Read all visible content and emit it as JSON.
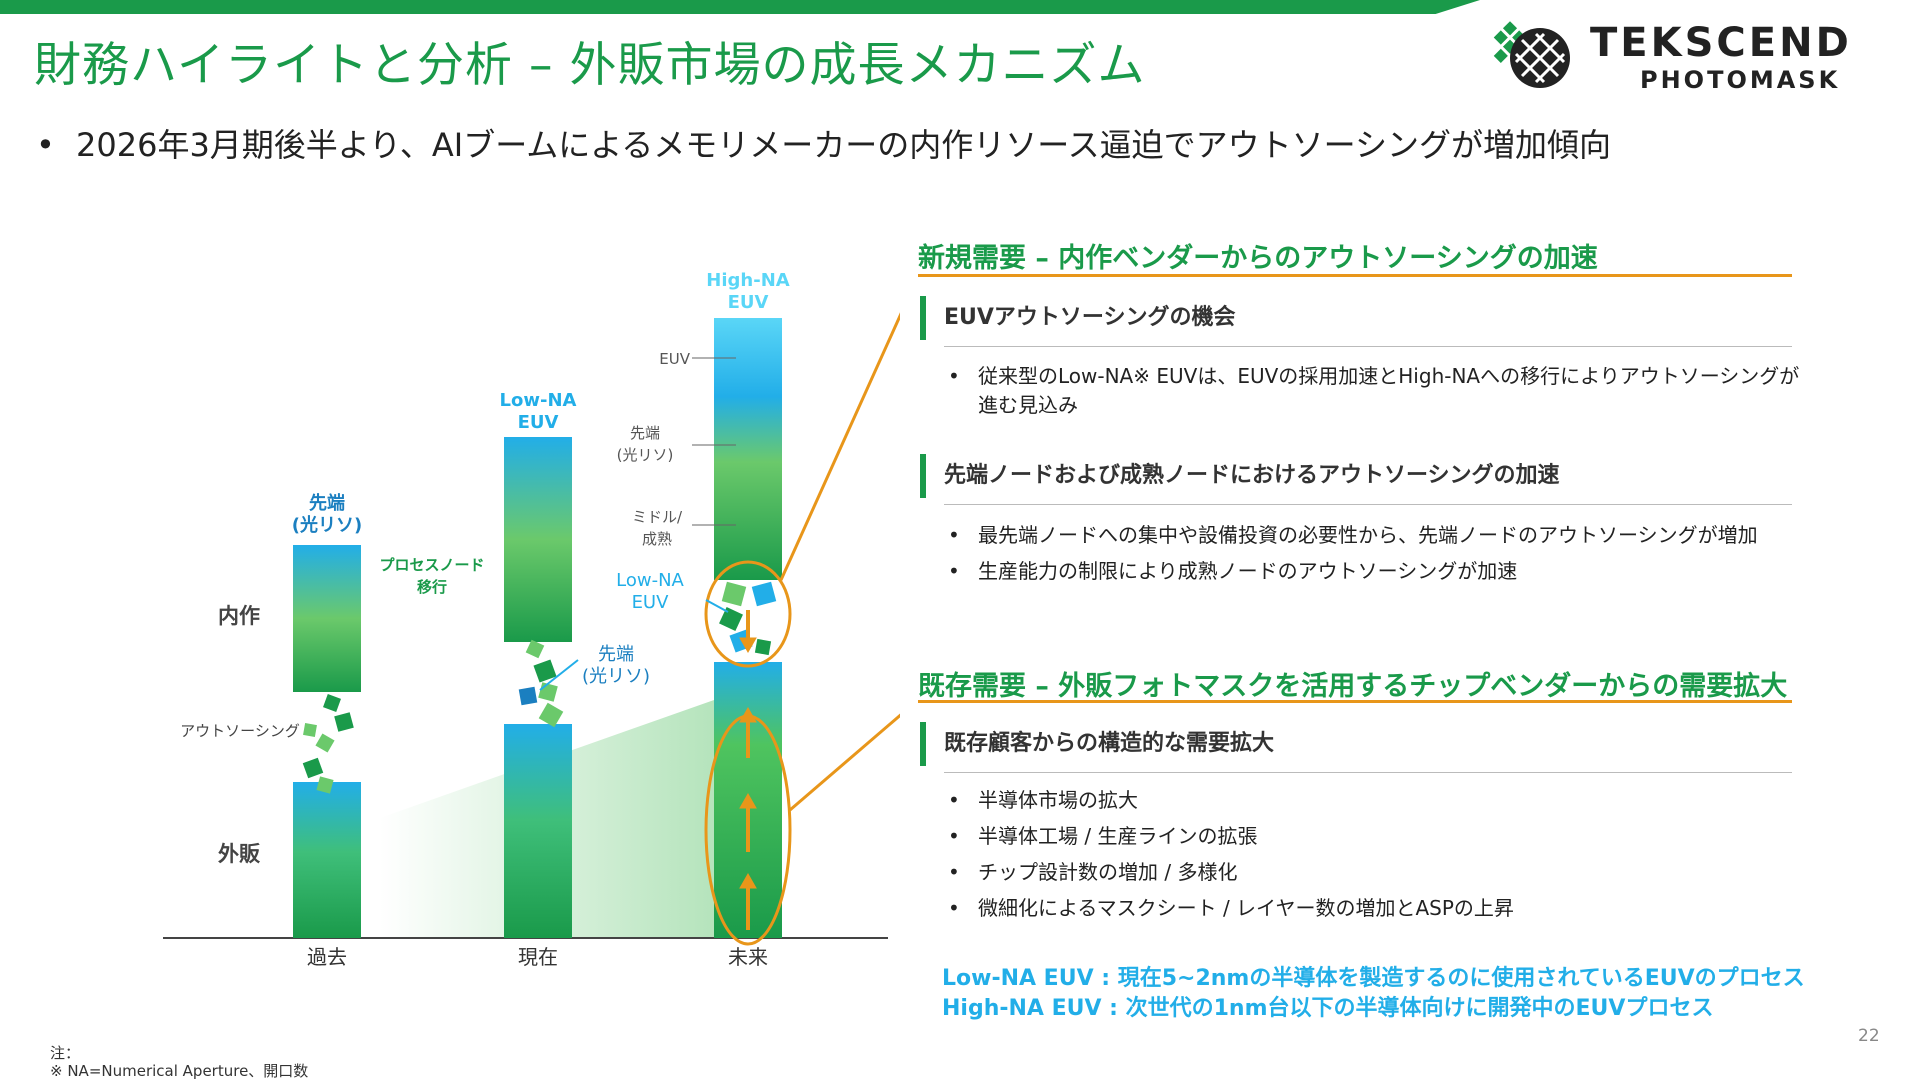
{
  "header": {
    "title": "財務ハイライトと分析 – 外販市場の成長メカニズム",
    "logo_main": "TEKSCEND",
    "logo_sub": "PHOTOMASK"
  },
  "main_bullet": "2026年3月期後半より、AIブームによるメモリメーカーの内作リソース逼迫でアウトソーシングが増加傾向",
  "diagram": {
    "row_labels": {
      "in_house": "内作",
      "merchant": "外販"
    },
    "outsourcing_label": "アウトソーシング",
    "node_shift_label": "プロセスノード\n移行",
    "columns": [
      {
        "x_label": "過去",
        "top_label": "先端\n(光リソ)"
      },
      {
        "x_label": "現在",
        "top_label": "Low-NA\nEUV",
        "side_label": "先端\n(光リソ)"
      },
      {
        "x_label": "未来",
        "top_label": "High-NA\nEUV",
        "side_label": "Low-NA\nEUV",
        "ticks": [
          "EUV",
          "先端\n(光リソ)",
          "ミドル/\n成熟"
        ]
      }
    ]
  },
  "sections": [
    {
      "title": "新規需要 – 内作ベンダーからのアウトソーシングの加速",
      "subs": [
        {
          "title": "EUVアウトソーシングの機会",
          "items": [
            "従来型のLow-NA※ EUVは、EUVの採用加速とHigh-NAへの移行によりアウトソーシングが\n進む見込み"
          ]
        },
        {
          "title": "先端ノードおよび成熟ノードにおけるアウトソーシングの加速",
          "items": [
            "最先端ノードへの集中や設備投資の必要性から、先端ノードのアウトソーシングが増加",
            "生産能力の制限により成熟ノードのアウトソーシングが加速"
          ]
        }
      ]
    },
    {
      "title": "既存需要 – 外販フォトマスクを活用するチップベンダーからの需要拡大",
      "subs": [
        {
          "title": "既存顧客からの構造的な需要拡大",
          "items": [
            "半導体市場の拡大",
            "半導体工場 / 生産ラインの拡張",
            "チップ設計数の増加 / 多様化",
            "微細化によるマスクシート / レイヤー数の増加とASPの上昇"
          ]
        }
      ]
    }
  ],
  "notes": {
    "low_na": "Low-NA EUV : 現在5~2nmの半導体を製造するのに使用されているEUVのプロセス",
    "high_na": "High-NA EUV : 次世代の1nm台以下の半導体向けに開発中のEUVプロセス"
  },
  "footnote": {
    "label": "注：",
    "text": "※ NA=Numerical Aperture、開口数"
  },
  "page_number": "22",
  "colors": {
    "brand_green": "#1a9a4a",
    "accent_orange": "#e8961a",
    "euv_blue": "#22aee8"
  }
}
